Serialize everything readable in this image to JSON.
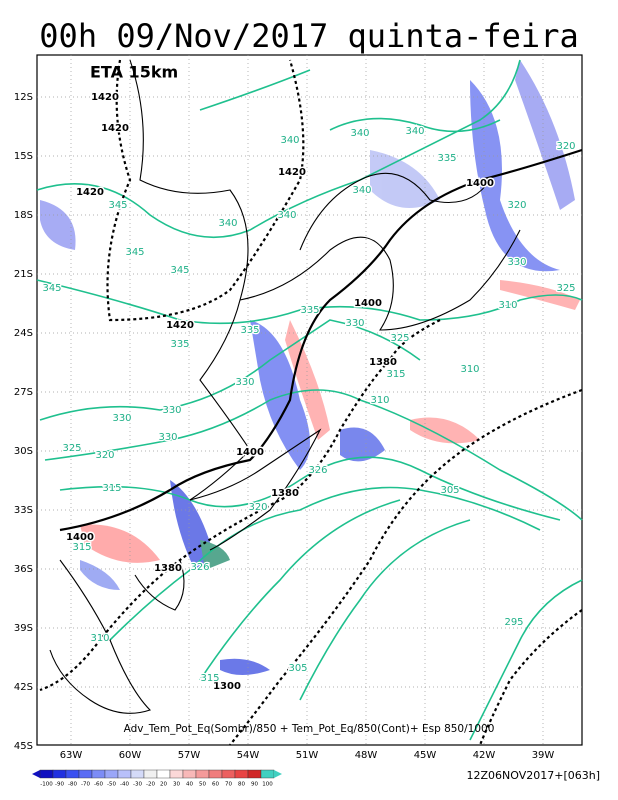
{
  "header": {
    "title": "00h 09/Nov/2017 quinta-feira"
  },
  "map": {
    "model_label": "ETA 15km",
    "lat_labels": [
      "12S",
      "15S",
      "18S",
      "21S",
      "24S",
      "27S",
      "30S",
      "33S",
      "36S",
      "39S",
      "42S",
      "45S"
    ],
    "lon_labels": [
      "63W",
      "60W",
      "57W",
      "54W",
      "51W",
      "48W",
      "45W",
      "42W",
      "39W"
    ],
    "height_labels": [
      1420,
      1420,
      1420,
      1420,
      1420,
      1400,
      1400,
      1380,
      1400,
      1380,
      1400,
      1380,
      1300
    ],
    "theta_e_labels": [
      340,
      340,
      340,
      335,
      340,
      340,
      340,
      320,
      320,
      345,
      330,
      325,
      310,
      345,
      345,
      345,
      335,
      335,
      335,
      330,
      325,
      315,
      310,
      310,
      330,
      330,
      330,
      330,
      325,
      320,
      315,
      326,
      320,
      305,
      295,
      305,
      315,
      310,
      315,
      326
    ],
    "caption": "Adv_Tem_Pot_Eq(Sombr)/850 + Tem_Pot_Eq/850(Cont)+ Esp 850/1000"
  },
  "colorbar": {
    "labels": [
      "-100",
      "-90",
      "-80",
      "-70",
      "-60",
      "-50",
      "-40",
      "-30",
      "-20",
      "20",
      "30",
      "40",
      "50",
      "60",
      "70",
      "80",
      "90",
      "100"
    ]
  },
  "footer": {
    "run": "12Z06NOV2017+[063h]"
  }
}
